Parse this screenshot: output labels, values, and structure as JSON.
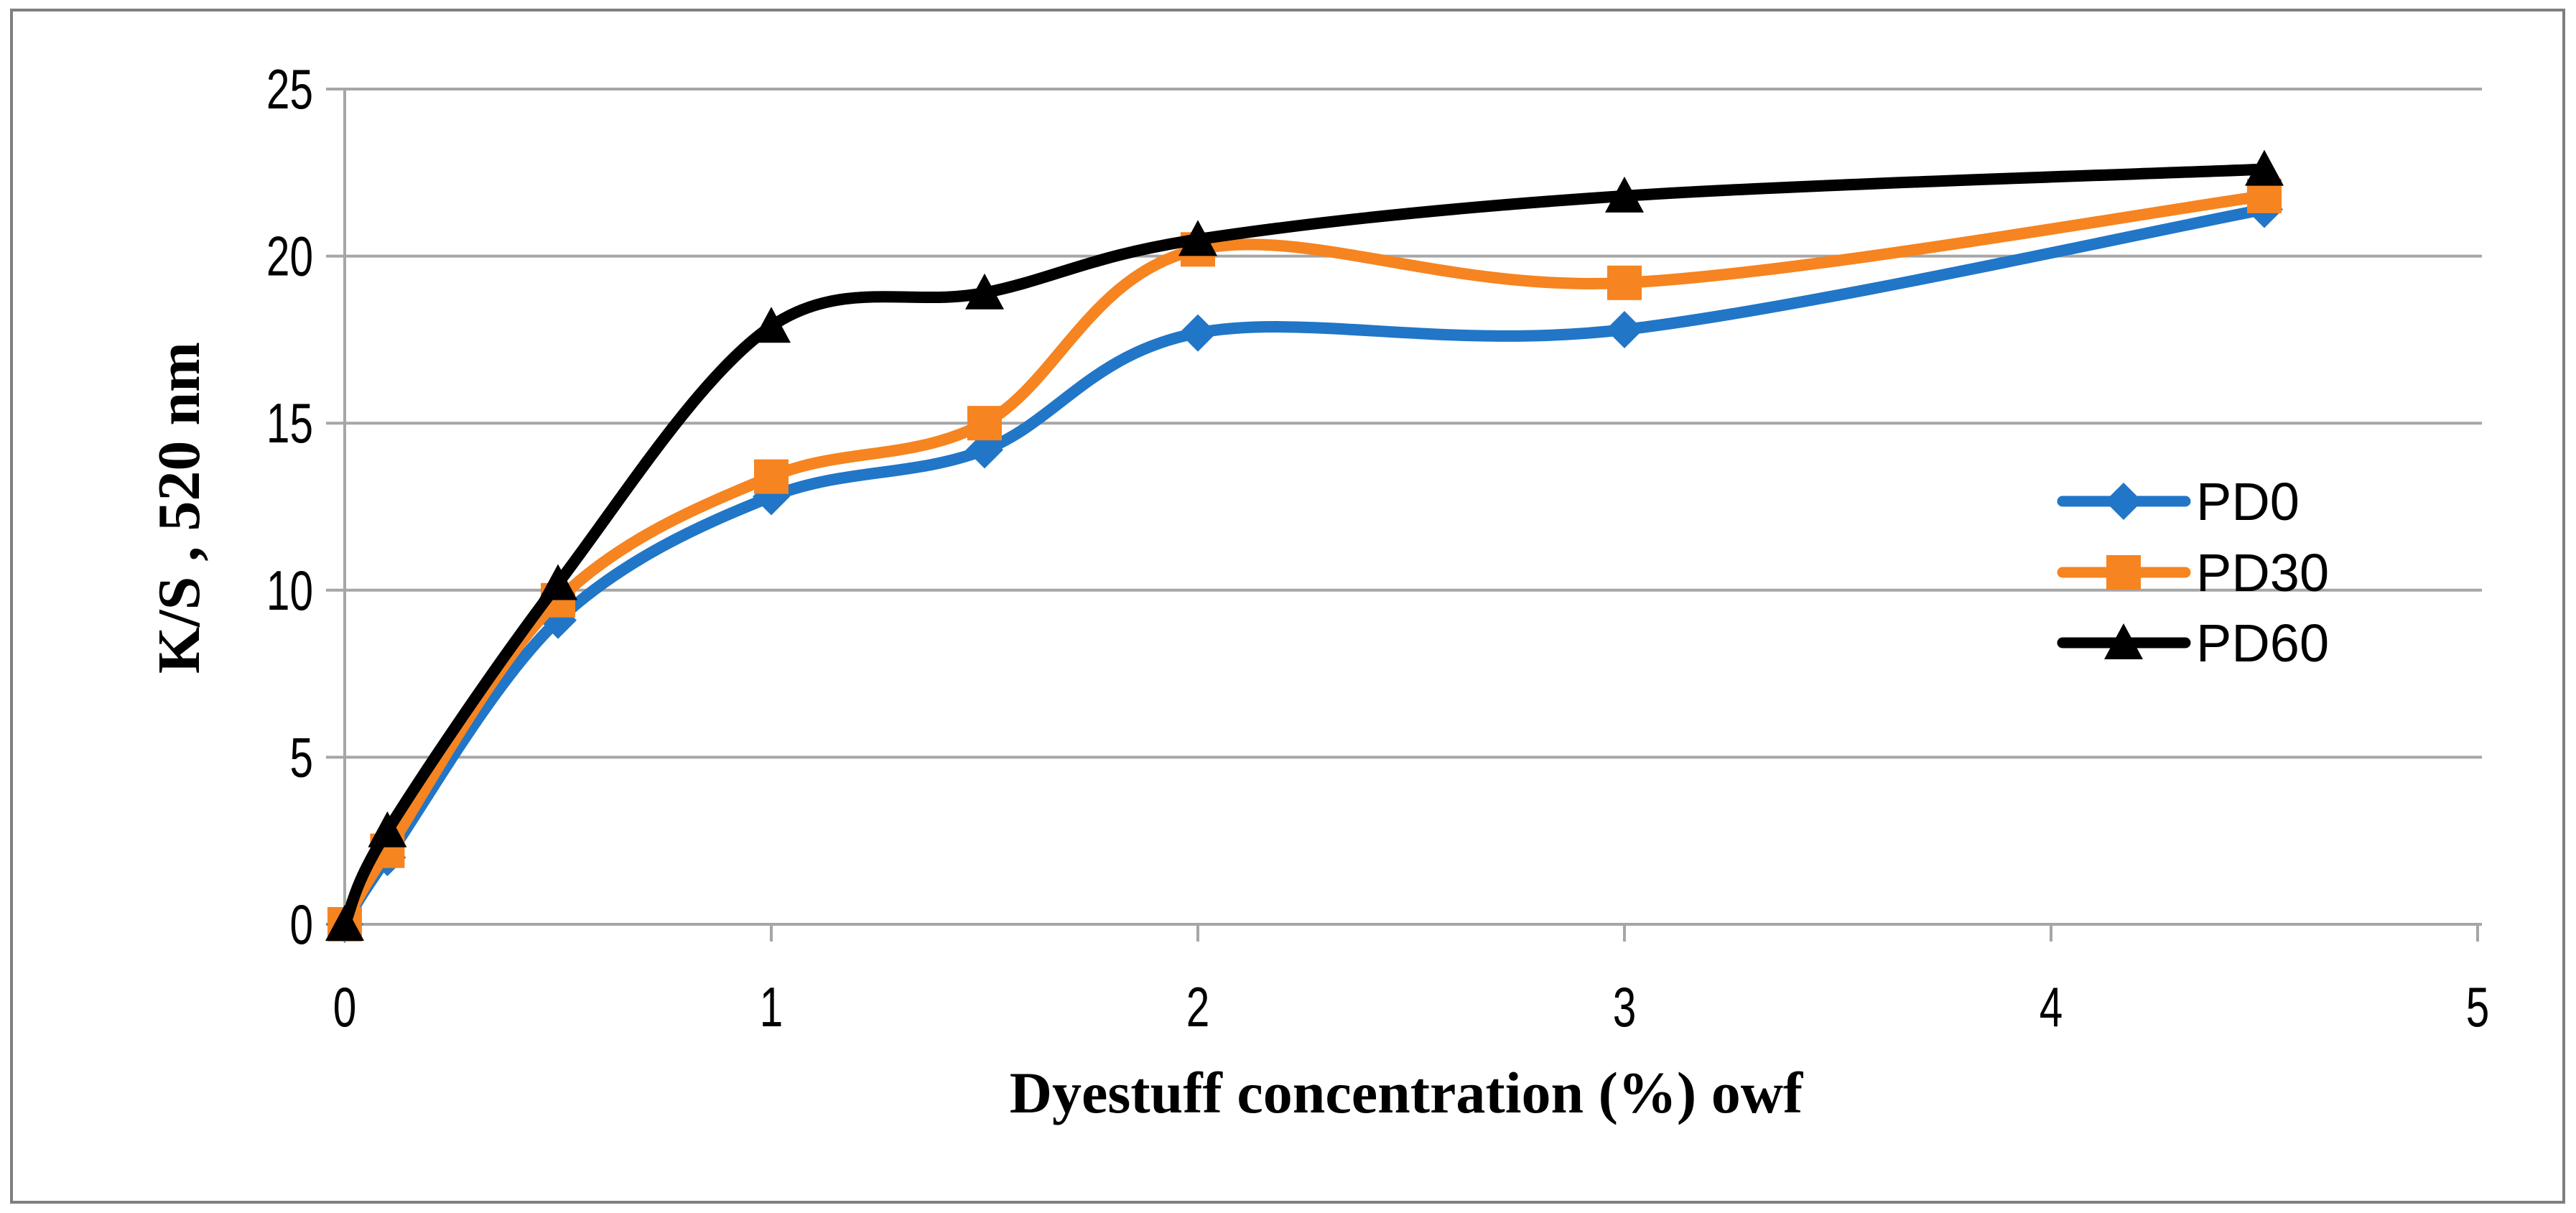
{
  "chart_data": {
    "type": "line",
    "title": "",
    "xlabel": "Dyestuff concentration (%) owf",
    "ylabel": "K/S , 520 nm",
    "x": [
      0,
      0.1,
      0.5,
      1,
      1.5,
      2,
      3,
      4.5
    ],
    "series": [
      {
        "name": "PD0",
        "marker": "diamond",
        "color": "#2176C7",
        "values": [
          0,
          2.0,
          9.1,
          12.8,
          14.2,
          17.7,
          17.8,
          21.4
        ]
      },
      {
        "name": "PD30",
        "marker": "square",
        "color": "#F68420",
        "values": [
          0,
          2.2,
          9.7,
          13.4,
          15.0,
          20.2,
          19.2,
          21.8
        ]
      },
      {
        "name": "PD60",
        "marker": "triangle",
        "color": "#000000",
        "values": [
          0,
          2.8,
          10.2,
          17.9,
          18.9,
          20.5,
          21.8,
          22.6
        ]
      }
    ],
    "xlim": [
      0,
      5
    ],
    "ylim": [
      0,
      25
    ],
    "x_ticks": [
      0,
      1,
      2,
      3,
      4,
      5
    ],
    "y_ticks": [
      0,
      5,
      10,
      15,
      20,
      25
    ],
    "grid": "horizontal-only",
    "smooth_lines": true,
    "legend_position": "inside-right-middle",
    "colors": {
      "gridline": "#A6A6A6",
      "axis": "#A6A6A6",
      "figure_border": "#7F7F7F",
      "text": "#000000",
      "background": "#FFFFFF"
    }
  }
}
